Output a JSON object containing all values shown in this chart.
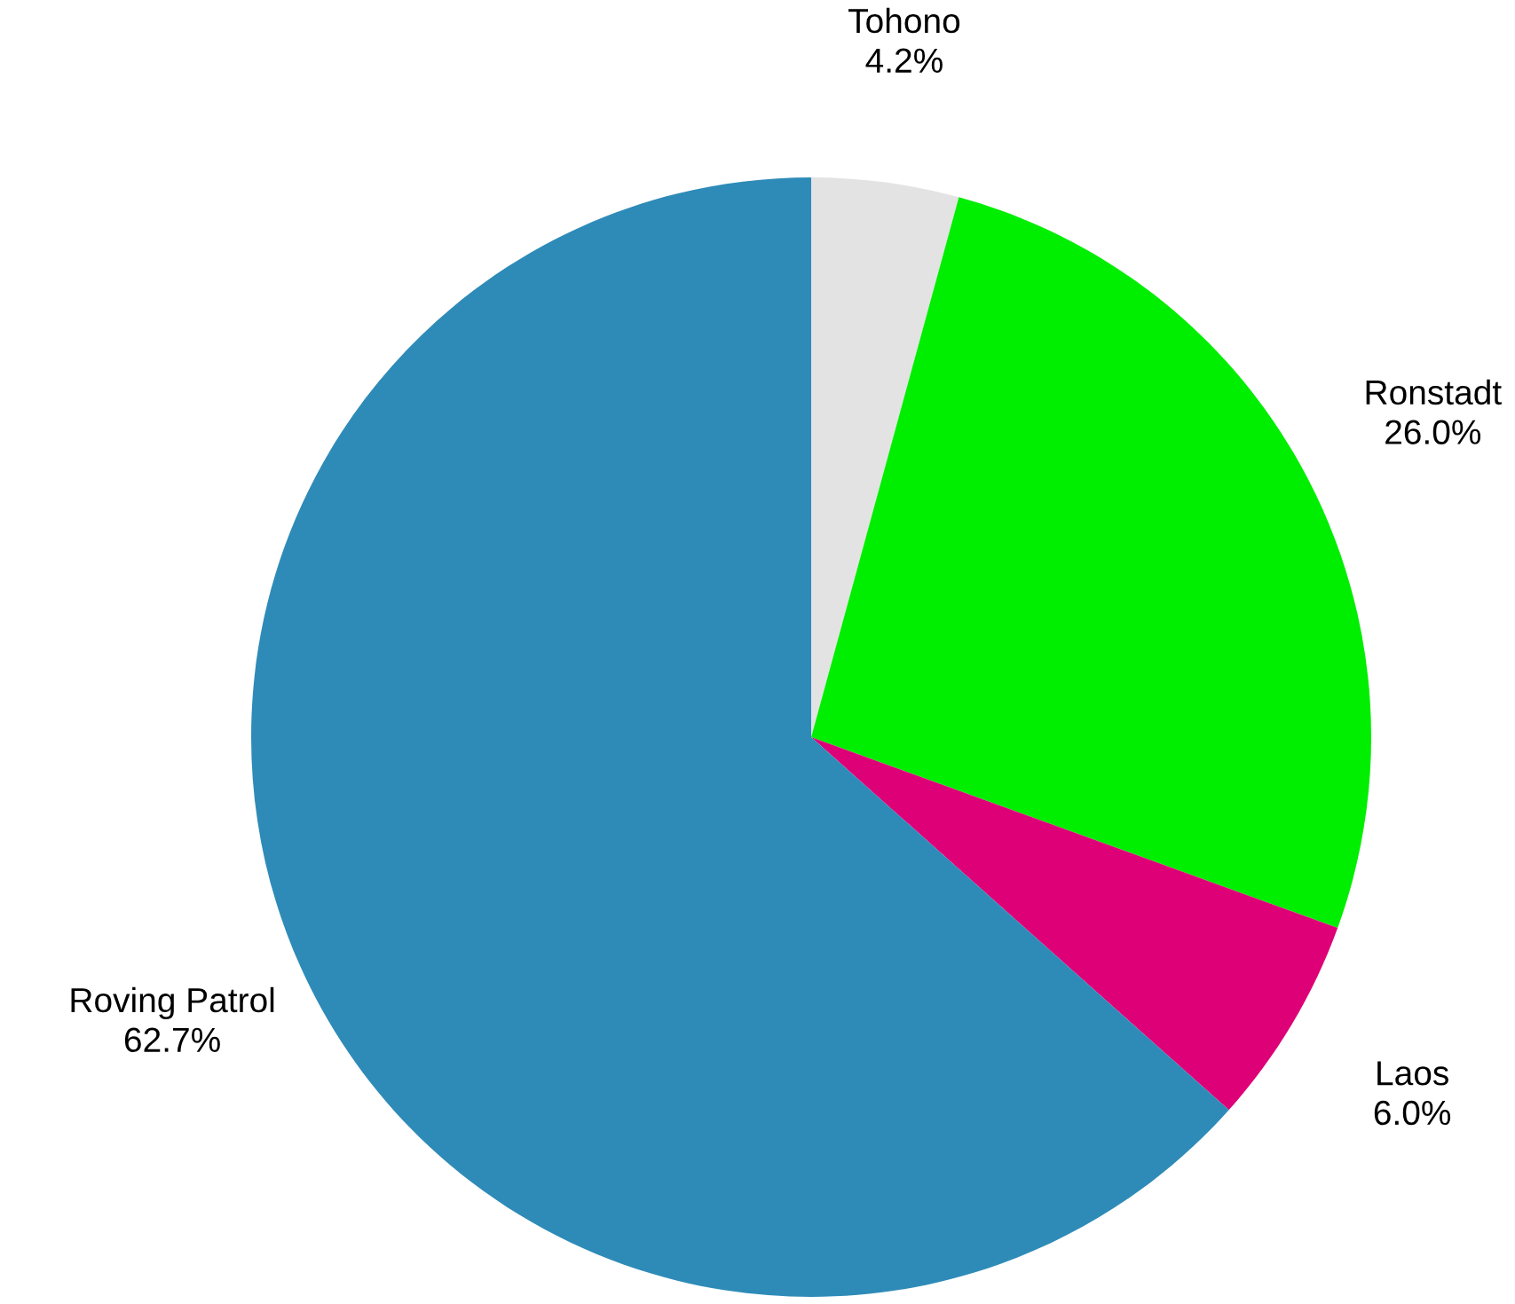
{
  "chart_data": {
    "type": "pie",
    "categories": [
      "Tohono",
      "Ronstadt",
      "Laos",
      "Roving Patrol"
    ],
    "values": [
      4.2,
      26.0,
      6.0,
      62.7
    ],
    "value_labels": [
      "4.2%",
      "26.0%",
      "6.0%",
      "62.7%"
    ],
    "colors": [
      "#e3e3e3",
      "#00ee00",
      "#dd0077",
      "#2e8bb8"
    ],
    "legend": false
  }
}
